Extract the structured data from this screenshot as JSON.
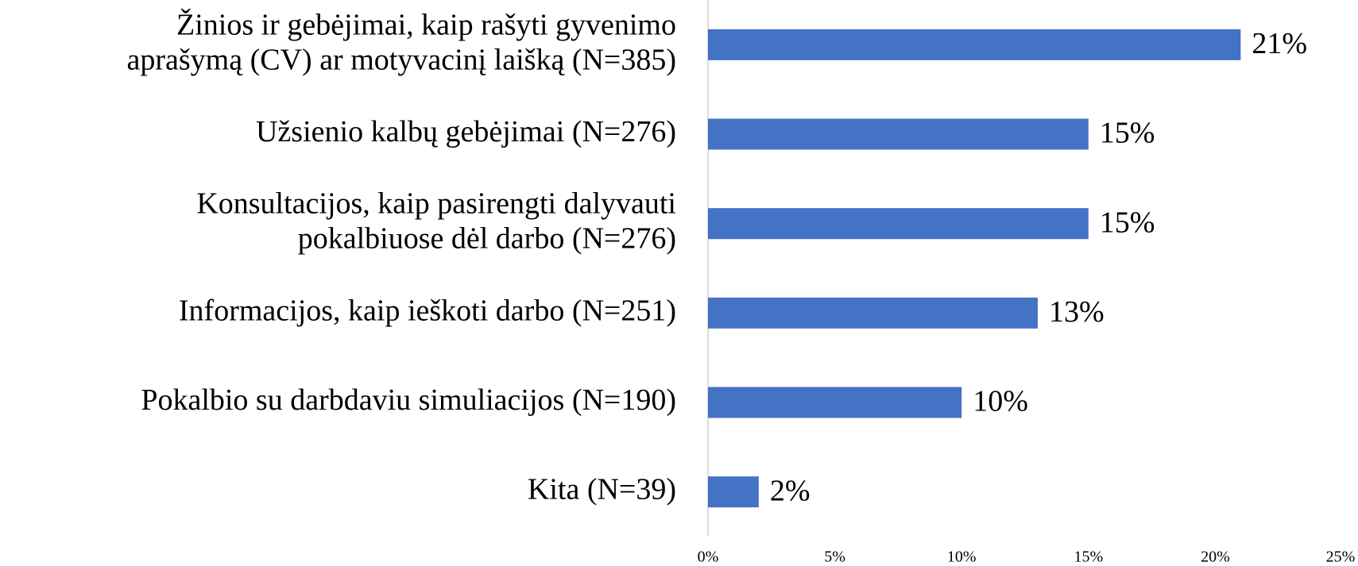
{
  "chart_data": {
    "type": "bar",
    "orientation": "horizontal",
    "categories": [
      "Žinios ir gebėjimai, kaip rašyti gyvenimo\naprašymą (CV) ar motyvacinį laišką (N=385)",
      "Užsienio kalbų gebėjimai (N=276)",
      "Konsultacijos, kaip pasirengti dalyvauti\npokalbiuose dėl darbo (N=276)",
      "Informacijos, kaip ieškoti darbo (N=251)",
      "Pokalbio su darbdaviu simuliacijos (N=190)",
      "Kita (N=39)"
    ],
    "values": [
      21,
      15,
      15,
      13,
      10,
      2
    ],
    "value_labels": [
      "21%",
      "15%",
      "15%",
      "13%",
      "10%",
      "2%"
    ],
    "color": "#4472c4",
    "xlim": [
      0,
      25
    ],
    "xticks": [
      {
        "value": 0,
        "label": "0%"
      },
      {
        "value": 5,
        "label": "5%"
      },
      {
        "value": 10,
        "label": "10%"
      },
      {
        "value": 15,
        "label": "15%"
      },
      {
        "value": 20,
        "label": "20%"
      },
      {
        "value": 25,
        "label": "25%"
      }
    ],
    "grid": false
  }
}
